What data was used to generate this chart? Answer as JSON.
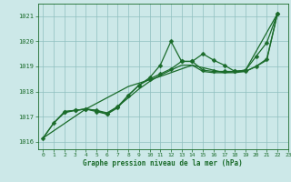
{
  "title": "Graphe pression niveau de la mer (hPa)",
  "bg_color": "#cce8e8",
  "grid_color": "#8fbfbf",
  "line_color": "#1a6b2a",
  "xlim": [
    -0.5,
    23
  ],
  "ylim": [
    1015.7,
    1021.5
  ],
  "yticks": [
    1016,
    1017,
    1018,
    1019,
    1020,
    1021
  ],
  "xticks": [
    0,
    1,
    2,
    3,
    4,
    5,
    6,
    7,
    8,
    9,
    10,
    11,
    12,
    13,
    14,
    15,
    16,
    17,
    18,
    19,
    20,
    21,
    22,
    23
  ],
  "series": [
    {
      "x": [
        0,
        1,
        2,
        3,
        4,
        5,
        6,
        7,
        8,
        9,
        10,
        11,
        12,
        13,
        14,
        15,
        16,
        17,
        18,
        19,
        20,
        21,
        22
      ],
      "y": [
        1016.15,
        1016.75,
        1017.2,
        1017.25,
        1017.3,
        1017.2,
        1017.1,
        1017.35,
        1017.85,
        1018.25,
        1018.55,
        1019.05,
        1020.0,
        1019.2,
        1019.2,
        1019.5,
        1019.25,
        1019.05,
        1018.8,
        1018.85,
        1019.4,
        1019.95,
        1021.1
      ],
      "marker": "D",
      "markersize": 2.5,
      "lw": 0.9
    },
    {
      "x": [
        2,
        3,
        4,
        5,
        6,
        7,
        8,
        9,
        10,
        11,
        12,
        13,
        14,
        15,
        16,
        17,
        18,
        19,
        20,
        21,
        22
      ],
      "y": [
        1017.2,
        1017.25,
        1017.3,
        1017.25,
        1017.1,
        1017.4,
        1017.85,
        1018.25,
        1018.5,
        1018.7,
        1018.9,
        1019.2,
        1019.2,
        1018.85,
        1018.8,
        1018.8,
        1018.8,
        1018.8,
        1019.0,
        1019.3,
        1021.1
      ],
      "marker": "D",
      "markersize": 2.5,
      "lw": 0.9
    },
    {
      "x": [
        0,
        1,
        2,
        3,
        4,
        5,
        6,
        7,
        8,
        9,
        10,
        11,
        12,
        13,
        14,
        15,
        16,
        17,
        18,
        19,
        20,
        21,
        22
      ],
      "y": [
        1016.15,
        1016.75,
        1017.15,
        1017.25,
        1017.3,
        1017.25,
        1017.15,
        1017.4,
        1017.75,
        1018.1,
        1018.4,
        1018.65,
        1018.85,
        1019.05,
        1019.05,
        1018.8,
        1018.75,
        1018.75,
        1018.75,
        1018.8,
        1019.0,
        1019.25,
        1021.1
      ],
      "marker": null,
      "lw": 0.9
    },
    {
      "x": [
        0,
        4,
        8,
        11,
        14,
        17,
        19,
        22
      ],
      "y": [
        1016.15,
        1017.3,
        1018.2,
        1018.6,
        1019.05,
        1018.75,
        1018.85,
        1021.1
      ],
      "marker": null,
      "lw": 0.9
    }
  ]
}
